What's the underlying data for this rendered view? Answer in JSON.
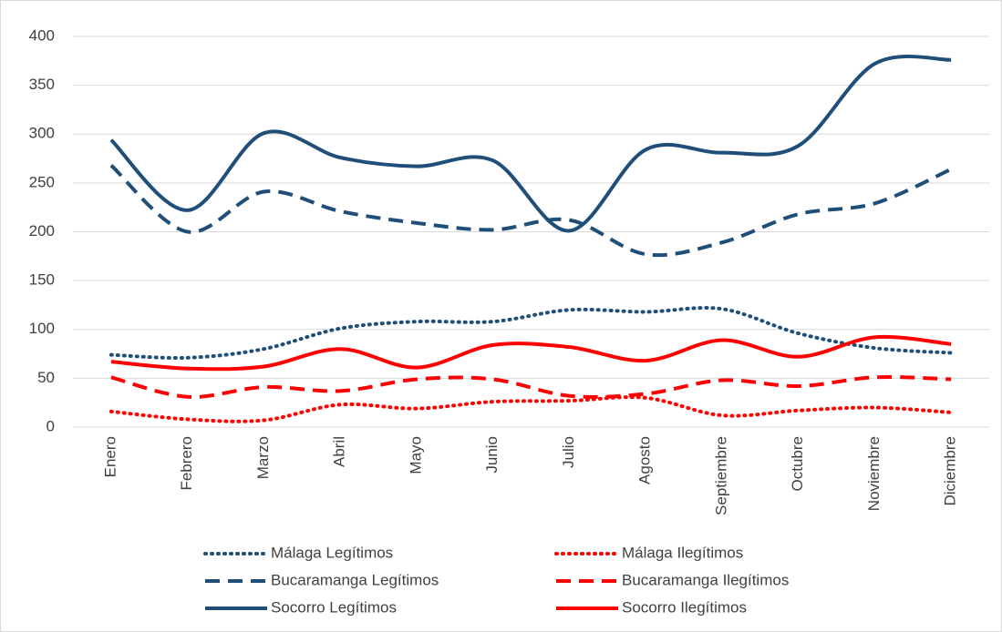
{
  "chart_data": {
    "type": "line",
    "categories": [
      "Enero",
      "Febrero",
      "Marzo",
      "Abril",
      "Mayo",
      "Junio",
      "Julio",
      "Agosto",
      "Septiembre",
      "Octubre",
      "Noviembre",
      "Diciembre"
    ],
    "series": [
      {
        "name": "Málaga Legítimos",
        "color": "#1f4e79",
        "dash": "dotted",
        "values": [
          74,
          71,
          80,
          101,
          108,
          108,
          120,
          118,
          121,
          96,
          81,
          76
        ]
      },
      {
        "name": "Málaga Ilegítimos",
        "color": "#ff0000",
        "dash": "dotted",
        "values": [
          16,
          8,
          7,
          23,
          19,
          26,
          27,
          30,
          12,
          17,
          20,
          15
        ]
      },
      {
        "name": "Bucaramanga Legítimos",
        "color": "#1f4e79",
        "dash": "dashed",
        "values": [
          268,
          200,
          241,
          221,
          209,
          202,
          212,
          177,
          189,
          218,
          229,
          264
        ]
      },
      {
        "name": "Bucaramanga Ilegítimos",
        "color": "#ff0000",
        "dash": "dashed",
        "values": [
          51,
          31,
          41,
          37,
          49,
          49,
          32,
          34,
          48,
          42,
          51,
          49
        ]
      },
      {
        "name": "Socorro Legítimos",
        "color": "#1f4e79",
        "dash": "solid",
        "values": [
          294,
          222,
          301,
          276,
          267,
          273,
          201,
          284,
          281,
          288,
          372,
          376
        ]
      },
      {
        "name": "Socorro Ilegítimos",
        "color": "#ff0000",
        "dash": "solid",
        "values": [
          67,
          60,
          62,
          80,
          61,
          84,
          82,
          68,
          89,
          72,
          92,
          85
        ]
      }
    ],
    "ylim": [
      0,
      400
    ],
    "yticks": [
      0,
      50,
      100,
      150,
      200,
      250,
      300,
      350,
      400
    ],
    "grid": true,
    "legend": "bottom",
    "smooth": true
  }
}
